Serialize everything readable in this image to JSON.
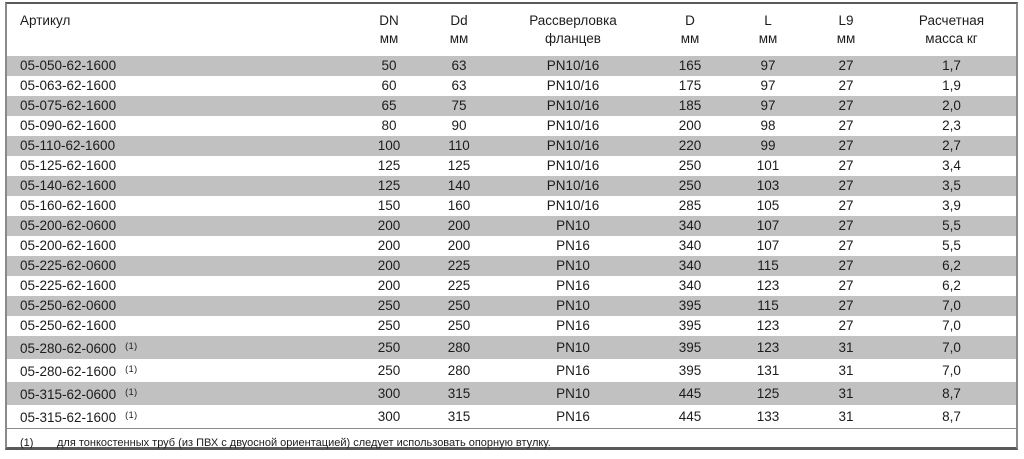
{
  "table": {
    "columns": [
      {
        "line1": "Артикул",
        "line2": ""
      },
      {
        "line1": "DN",
        "line2": "мм"
      },
      {
        "line1": "Dd",
        "line2": "мм"
      },
      {
        "line1": "Рассверловка",
        "line2": "фланцев"
      },
      {
        "line1": "D",
        "line2": "мм"
      },
      {
        "line1": "L",
        "line2": "мм"
      },
      {
        "line1": "L9",
        "line2": "мм"
      },
      {
        "line1": "Расчетная",
        "line2": "масса кг"
      }
    ],
    "rows": [
      {
        "article": "05-050-62-1600",
        "note": "",
        "dn": "50",
        "dd": "63",
        "drilling": "PN10/16",
        "d": "165",
        "l": "97",
        "l9": "27",
        "mass": "1,7"
      },
      {
        "article": "05-063-62-1600",
        "note": "",
        "dn": "60",
        "dd": "63",
        "drilling": "PN10/16",
        "d": "175",
        "l": "97",
        "l9": "27",
        "mass": "1,9"
      },
      {
        "article": "05-075-62-1600",
        "note": "",
        "dn": "65",
        "dd": "75",
        "drilling": "PN10/16",
        "d": "185",
        "l": "97",
        "l9": "27",
        "mass": "2,0"
      },
      {
        "article": "05-090-62-1600",
        "note": "",
        "dn": "80",
        "dd": "90",
        "drilling": "PN10/16",
        "d": "200",
        "l": "98",
        "l9": "27",
        "mass": "2,3"
      },
      {
        "article": "05-110-62-1600",
        "note": "",
        "dn": "100",
        "dd": "110",
        "drilling": "PN10/16",
        "d": "220",
        "l": "99",
        "l9": "27",
        "mass": "2,7"
      },
      {
        "article": "05-125-62-1600",
        "note": "",
        "dn": "125",
        "dd": "125",
        "drilling": "PN10/16",
        "d": "250",
        "l": "101",
        "l9": "27",
        "mass": "3,4"
      },
      {
        "article": "05-140-62-1600",
        "note": "",
        "dn": "125",
        "dd": "140",
        "drilling": "PN10/16",
        "d": "250",
        "l": "103",
        "l9": "27",
        "mass": "3,5"
      },
      {
        "article": "05-160-62-1600",
        "note": "",
        "dn": "150",
        "dd": "160",
        "drilling": "PN10/16",
        "d": "285",
        "l": "105",
        "l9": "27",
        "mass": "3,9"
      },
      {
        "article": "05-200-62-0600",
        "note": "",
        "dn": "200",
        "dd": "200",
        "drilling": "PN10",
        "d": "340",
        "l": "107",
        "l9": "27",
        "mass": "5,5"
      },
      {
        "article": "05-200-62-1600",
        "note": "",
        "dn": "200",
        "dd": "200",
        "drilling": "PN16",
        "d": "340",
        "l": "107",
        "l9": "27",
        "mass": "5,5"
      },
      {
        "article": "05-225-62-0600",
        "note": "",
        "dn": "200",
        "dd": "225",
        "drilling": "PN10",
        "d": "340",
        "l": "115",
        "l9": "27",
        "mass": "6,2"
      },
      {
        "article": "05-225-62-1600",
        "note": "",
        "dn": "200",
        "dd": "225",
        "drilling": "PN16",
        "d": "340",
        "l": "123",
        "l9": "27",
        "mass": "6,2"
      },
      {
        "article": "05-250-62-0600",
        "note": "",
        "dn": "250",
        "dd": "250",
        "drilling": "PN10",
        "d": "395",
        "l": "115",
        "l9": "27",
        "mass": "7,0"
      },
      {
        "article": "05-250-62-1600",
        "note": "",
        "dn": "250",
        "dd": "250",
        "drilling": "PN16",
        "d": "395",
        "l": "123",
        "l9": "27",
        "mass": "7,0"
      },
      {
        "article": "05-280-62-0600",
        "note": "(1)",
        "dn": "250",
        "dd": "280",
        "drilling": "PN10",
        "d": "395",
        "l": "123",
        "l9": "31",
        "mass": "7,0"
      },
      {
        "article": "05-280-62-1600",
        "note": "(1)",
        "dn": "250",
        "dd": "280",
        "drilling": "PN16",
        "d": "395",
        "l": "131",
        "l9": "31",
        "mass": "7,0"
      },
      {
        "article": "05-315-62-0600",
        "note": "(1)",
        "dn": "300",
        "dd": "315",
        "drilling": "PN10",
        "d": "445",
        "l": "125",
        "l9": "31",
        "mass": "8,7"
      },
      {
        "article": "05-315-62-1600",
        "note": "(1)",
        "dn": "300",
        "dd": "315",
        "drilling": "PN16",
        "d": "445",
        "l": "133",
        "l9": "31",
        "mass": "8,7"
      }
    ],
    "footnote": {
      "marker": "(1)",
      "text": "для тонкостенных труб (из ПВХ с двуосной ориентацией) следует использовать опорную втулку."
    }
  },
  "colors": {
    "row_shaded": "#c1c1c1",
    "border": "#8a8a8a",
    "border_dark": "#5a5a5a",
    "text": "#1c1c1c"
  }
}
